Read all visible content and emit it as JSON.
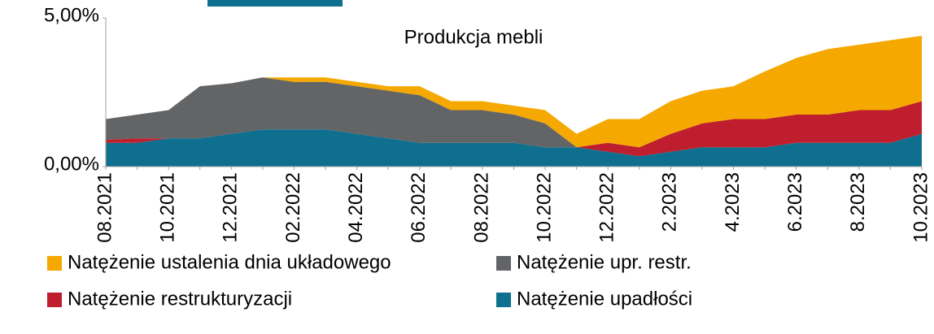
{
  "chart_data": {
    "type": "stacked_area",
    "title": "Produkcja mebli",
    "categories": [
      "08.2021",
      null,
      "10.2021",
      null,
      "12.2021",
      null,
      "02.2022",
      null,
      "04.2022",
      null,
      "06.2022",
      null,
      "08.2022",
      null,
      "10.2022",
      null,
      "12.2022",
      null,
      "2.2023",
      null,
      "4.2023",
      null,
      "6.2023",
      null,
      "8.2023",
      null,
      "10.2023"
    ],
    "series": [
      {
        "name": "Natężenie upadłości",
        "color": "#0e6f8e",
        "values": [
          0.8,
          0.8,
          0.95,
          0.95,
          1.1,
          1.25,
          1.25,
          1.25,
          1.1,
          0.95,
          0.8,
          0.8,
          0.8,
          0.8,
          0.65,
          0.65,
          0.5,
          0.35,
          0.5,
          0.65,
          0.65,
          0.65,
          0.8,
          0.8,
          0.8,
          0.8,
          1.1
        ]
      },
      {
        "name": "Natężenie restrukturyzacji",
        "color": "#be1e2d",
        "values": [
          0.1,
          0.15,
          0,
          0,
          0,
          0,
          0,
          0,
          0,
          0,
          0,
          0,
          0,
          0,
          0,
          0,
          0.3,
          0.3,
          0.6,
          0.8,
          0.95,
          0.95,
          0.95,
          0.95,
          1.1,
          1.1,
          1.1
        ]
      },
      {
        "name": "Natężenie upr. restr.",
        "color": "#636466",
        "values": [
          0.7,
          0.8,
          0.95,
          1.75,
          1.7,
          1.75,
          1.6,
          1.6,
          1.6,
          1.6,
          1.6,
          1.1,
          1.1,
          0.95,
          0.8,
          0,
          0,
          0,
          0,
          0,
          0,
          0,
          0,
          0,
          0,
          0,
          0
        ]
      },
      {
        "name": "Natężenie ustalenia dnia układowego",
        "color": "#f5a800",
        "values": [
          0,
          0,
          0,
          0,
          0,
          0,
          0.15,
          0.15,
          0.15,
          0.15,
          0.3,
          0.3,
          0.3,
          0.3,
          0.45,
          0.45,
          0.8,
          0.95,
          1.1,
          1.1,
          1.1,
          1.6,
          1.9,
          2.2,
          2.2,
          2.35,
          2.2
        ]
      }
    ],
    "ylim": [
      0,
      5
    ],
    "yticks": [
      {
        "value": 0,
        "label": "0,00%"
      },
      {
        "value": 5,
        "label": "5,00%"
      }
    ]
  }
}
